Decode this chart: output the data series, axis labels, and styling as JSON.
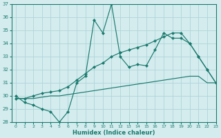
{
  "xlabel": "Humidex (Indice chaleur)",
  "x": [
    0,
    1,
    2,
    3,
    4,
    5,
    6,
    7,
    8,
    9,
    10,
    11,
    12,
    13,
    14,
    15,
    16,
    17,
    18,
    19,
    20,
    21,
    22,
    23
  ],
  "line1": [
    30.0,
    29.5,
    29.3,
    29.0,
    28.8,
    28.0,
    28.8,
    31.0,
    31.5,
    35.8,
    34.8,
    37.0,
    33.0,
    32.2,
    32.4,
    32.3,
    33.5,
    34.8,
    34.4,
    34.4,
    34.0,
    33.0,
    32.0,
    31.0
  ],
  "line2": [
    29.8,
    29.8,
    30.0,
    30.2,
    30.3,
    30.4,
    30.7,
    31.2,
    31.7,
    32.2,
    32.5,
    33.0,
    33.3,
    33.5,
    33.7,
    33.9,
    34.2,
    34.5,
    34.8,
    34.8,
    34.0,
    33.0,
    32.0,
    31.0
  ],
  "line3": [
    29.8,
    29.8,
    29.8,
    29.9,
    30.0,
    30.0,
    30.1,
    30.2,
    30.3,
    30.4,
    30.5,
    30.6,
    30.7,
    30.8,
    30.9,
    31.0,
    31.1,
    31.2,
    31.3,
    31.4,
    31.5,
    31.5,
    31.0,
    31.0
  ],
  "line_color": "#1a7a6e",
  "bg_color": "#d4ecee",
  "grid_color": "#aed5d8",
  "ylim": [
    28,
    37
  ],
  "xlim": [
    -0.5,
    23
  ],
  "yticks": [
    28,
    29,
    30,
    31,
    32,
    33,
    34,
    35,
    36,
    37
  ],
  "xticks": [
    0,
    1,
    2,
    3,
    4,
    5,
    6,
    7,
    8,
    9,
    10,
    11,
    12,
    13,
    14,
    15,
    16,
    17,
    18,
    19,
    20,
    21,
    22,
    23
  ]
}
